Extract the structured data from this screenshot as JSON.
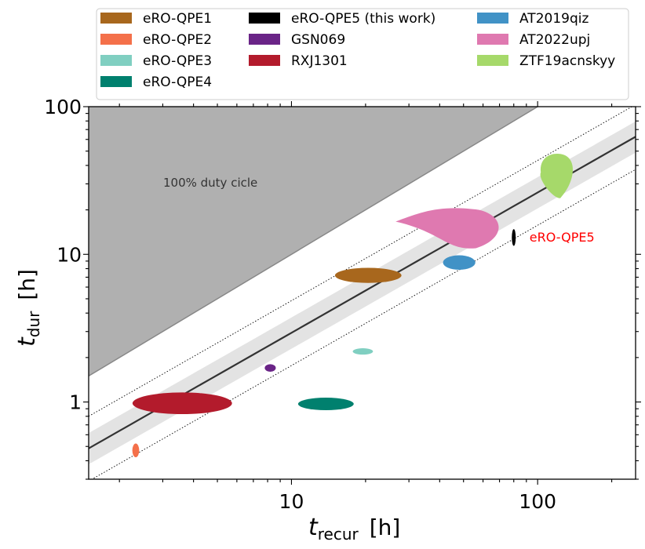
{
  "chart_data": {
    "type": "scatter",
    "xlabel_main": "t",
    "xlabel_sub": "recur",
    "xlabel_unit": "[h]",
    "ylabel_main": "t",
    "ylabel_sub": "dur",
    "ylabel_unit": "[h]",
    "xscale": "log",
    "yscale": "log",
    "xlim": [
      1.5,
      250
    ],
    "ylim": [
      0.3,
      100
    ],
    "xticks": [
      {
        "value": 10,
        "label": "10"
      },
      {
        "value": 100,
        "label": "100"
      }
    ],
    "yticks": [
      {
        "value": 1,
        "label": "1"
      },
      {
        "value": 10,
        "label": "10"
      },
      {
        "value": 100,
        "label": "100"
      }
    ],
    "legend_location": "top",
    "duty_cycle_label": "100% duty cicle",
    "highlight_label": "eRO-QPE5",
    "highlight_color": "#ff0000",
    "fit_line": {
      "a": 0.33,
      "b": 0.95,
      "band_low": 0.78,
      "band_high": 1.27,
      "dotted_low": 0.6,
      "dotted_high": 1.65
    },
    "series": [
      {
        "name": "eRO-QPE1",
        "color": "#a8671d",
        "x": 20.5,
        "y": 7.2,
        "x_range": [
          14.5,
          27
        ],
        "y_range": [
          6.4,
          8.1
        ]
      },
      {
        "name": "eRO-QPE2",
        "color": "#f4704a",
        "x": 2.33,
        "y": 0.47,
        "x_range": [
          2.26,
          2.41
        ],
        "y_range": [
          0.42,
          0.52
        ]
      },
      {
        "name": "eRO-QPE3",
        "color": "#80cfc1",
        "x": 19.5,
        "y": 2.2,
        "x_range": [
          17.8,
          21.5
        ],
        "y_range": [
          2.1,
          2.32
        ]
      },
      {
        "name": "eRO-QPE4",
        "color": "#00806e",
        "x": 13.8,
        "y": 0.97,
        "x_range": [
          10.4,
          17.5
        ],
        "y_range": [
          0.88,
          1.07
        ]
      },
      {
        "name": "eRO-QPE5 (this work)",
        "color": "#000000",
        "x": 80,
        "y": 13,
        "x_range": [
          79.2,
          80.9
        ],
        "y_range": [
          11.4,
          14.8
        ]
      },
      {
        "name": "GSN069",
        "color": "#6a2487",
        "x": 8.2,
        "y": 1.7,
        "x_range": [
          7.8,
          8.65
        ],
        "y_range": [
          1.6,
          1.8
        ]
      },
      {
        "name": "RXJ1301",
        "color": "#b31b2c",
        "x": 3.6,
        "y": 0.98,
        "x_range": [
          2.05,
          5.2
        ],
        "y_range": [
          0.82,
          1.15
        ]
      },
      {
        "name": "AT2019qiz",
        "color": "#4192c6",
        "x": 48,
        "y": 8.8,
        "x_range": [
          41,
          55.5
        ],
        "y_range": [
          7.9,
          9.9
        ]
      },
      {
        "name": "AT2022upj",
        "color": "#df79b0",
        "x": 45,
        "y": 15.5,
        "x_range": [
          26.5,
          71
        ],
        "y_range": [
          11,
          21
        ]
      },
      {
        "name": "ZTF19acnskyy",
        "color": "#a6d96a",
        "x": 120,
        "y": 35,
        "x_range": [
          103,
          138
        ],
        "y_range": [
          24,
          48
        ]
      }
    ]
  }
}
